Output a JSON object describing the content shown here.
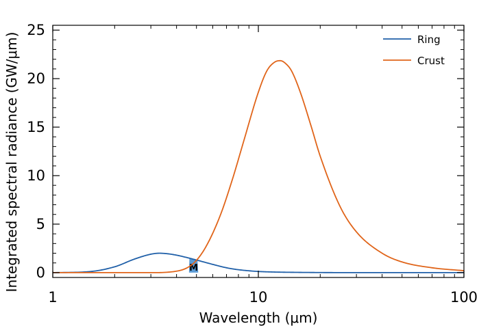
{
  "chart_data": {
    "type": "line",
    "title": "",
    "xlabel": "Wavelength (μm)",
    "ylabel": "Integrated spectral radiance (GW/μm)",
    "xscale": "log",
    "xlim": [
      1,
      100
    ],
    "ylim": [
      -0.5,
      25.5
    ],
    "xticks": [
      1,
      10,
      100
    ],
    "xtick_labels": [
      "1",
      "10",
      "100"
    ],
    "yticks": [
      0,
      5,
      10,
      15,
      20,
      25
    ],
    "ytick_labels": [
      "0",
      "5",
      "10",
      "15",
      "20",
      "25"
    ],
    "grid": false,
    "legend_position": "top-right",
    "series": [
      {
        "name": "Ring",
        "color": "#1f5fa8",
        "x": [
          1.0,
          1.5,
          2.0,
          2.5,
          3.0,
          3.3,
          3.6,
          4.0,
          4.5,
          5.0,
          6.0,
          7.0,
          8.0,
          10.0,
          12.0,
          15.0,
          20.0,
          30.0,
          50.0,
          100.0
        ],
        "y": [
          0.0,
          0.1,
          0.6,
          1.4,
          1.9,
          2.0,
          1.95,
          1.8,
          1.55,
          1.3,
          0.85,
          0.5,
          0.3,
          0.12,
          0.06,
          0.03,
          0.01,
          0.0,
          0.0,
          0.0
        ]
      },
      {
        "name": "Crust",
        "color": "#e06419",
        "x": [
          1.0,
          2.0,
          3.0,
          4.0,
          4.8,
          5.5,
          6.5,
          7.5,
          8.5,
          10.0,
          11.0,
          12.0,
          12.8,
          13.5,
          14.5,
          16.0,
          18.0,
          20.0,
          25.0,
          30.0,
          40.0,
          50.0,
          70.0,
          100.0
        ],
        "y": [
          0.0,
          0.0,
          0.0,
          0.15,
          0.9,
          2.5,
          5.8,
          9.7,
          13.6,
          18.6,
          20.8,
          21.7,
          21.85,
          21.6,
          20.8,
          18.6,
          15.2,
          12.0,
          6.8,
          4.2,
          2.0,
          1.1,
          0.5,
          0.2
        ]
      }
    ],
    "annotations": [
      {
        "label": "M",
        "color": "#5b9bd5",
        "x_range": [
          4.6,
          5.1
        ]
      }
    ]
  }
}
